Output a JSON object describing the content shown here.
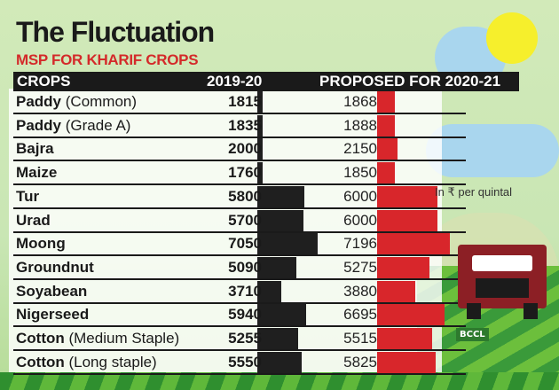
{
  "title": "The Fluctuation",
  "subtitle": "MSP FOR KHARIF CROPS",
  "note": "In ₹ per quintal",
  "watermark": "BCCL",
  "colors": {
    "bar_2019": "#1f1f1f",
    "bar_2020": "#d8262b",
    "subtitle": "#d42a2a"
  },
  "chart_data": {
    "type": "table",
    "title": "The Fluctuation",
    "subtitle": "MSP FOR KHARIF CROPS",
    "unit": "In ₹ per quintal",
    "columns": [
      "CROPS",
      "2019-20",
      "PROPOSED FOR 2020-21"
    ],
    "rows": [
      {
        "crop": "Paddy",
        "qualifier": "(Common)",
        "v2019": 1815,
        "v2020": 1868
      },
      {
        "crop": "Paddy",
        "qualifier": "(Grade A)",
        "v2019": 1835,
        "v2020": 1888
      },
      {
        "crop": "Bajra",
        "qualifier": "",
        "v2019": 2000,
        "v2020": 2150
      },
      {
        "crop": "Maize",
        "qualifier": "",
        "v2019": 1760,
        "v2020": 1850
      },
      {
        "crop": "Tur",
        "qualifier": "",
        "v2019": 5800,
        "v2020": 6000
      },
      {
        "crop": "Urad",
        "qualifier": "",
        "v2019": 5700,
        "v2020": 6000
      },
      {
        "crop": "Moong",
        "qualifier": "",
        "v2019": 7050,
        "v2020": 7196
      },
      {
        "crop": "Groundnut",
        "qualifier": "",
        "v2019": 5090,
        "v2020": 5275
      },
      {
        "crop": "Soyabean",
        "qualifier": "",
        "v2019": 3710,
        "v2020": 3880
      },
      {
        "crop": "Nigerseed",
        "qualifier": "",
        "v2019": 5940,
        "v2020": 6695
      },
      {
        "crop": "Cotton",
        "qualifier": "(Medium Staple)",
        "v2019": 5255,
        "v2020": 5515
      },
      {
        "crop": "Cotton",
        "qualifier": "(Long staple)",
        "v2019": 5550,
        "v2020": 5825
      }
    ]
  }
}
